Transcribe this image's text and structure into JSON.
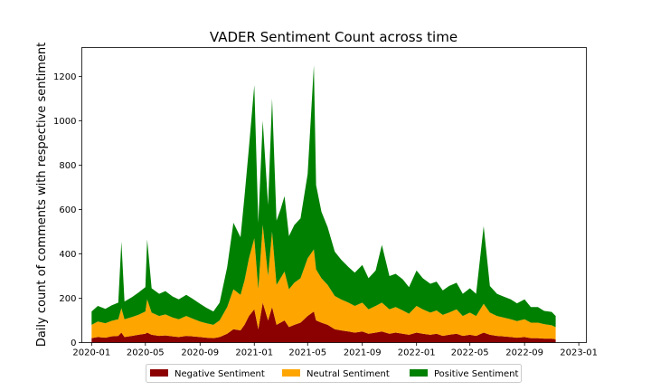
{
  "chart_data": {
    "type": "area",
    "stacked": true,
    "title": "VADER Sentiment Count across time",
    "xlabel": "",
    "ylabel": "Daily count of comments with respective sentiment",
    "xlim": [
      "2019-12-10",
      "2023-01-18"
    ],
    "ylim": [
      0,
      1330
    ],
    "x_ticks": [
      "2020-01",
      "2020-05",
      "2020-09",
      "2021-01",
      "2021-05",
      "2021-09",
      "2022-01",
      "2022-05",
      "2022-09",
      "2023-01"
    ],
    "y_ticks": [
      0,
      200,
      400,
      600,
      800,
      1000,
      1200
    ],
    "grid": false,
    "legend_position": "bottom-center",
    "colors": {
      "Negative Sentiment": "#8b0000",
      "Neutral Sentiment": "#ffa500",
      "Positive Sentiment": "#008000"
    },
    "dates": [
      "2020-01-01",
      "2020-01-15",
      "2020-02-01",
      "2020-02-15",
      "2020-03-01",
      "2020-03-08",
      "2020-03-15",
      "2020-04-01",
      "2020-04-15",
      "2020-05-01",
      "2020-05-05",
      "2020-05-15",
      "2020-06-01",
      "2020-06-15",
      "2020-07-01",
      "2020-07-15",
      "2020-08-01",
      "2020-08-15",
      "2020-09-01",
      "2020-09-15",
      "2020-10-01",
      "2020-10-15",
      "2020-11-01",
      "2020-11-15",
      "2020-12-01",
      "2020-12-10",
      "2020-12-20",
      "2021-01-01",
      "2021-01-10",
      "2021-01-20",
      "2021-02-01",
      "2021-02-10",
      "2021-02-20",
      "2021-03-01",
      "2021-03-10",
      "2021-03-20",
      "2021-04-01",
      "2021-04-15",
      "2021-05-01",
      "2021-05-15",
      "2021-05-20",
      "2021-06-01",
      "2021-06-15",
      "2021-07-01",
      "2021-07-15",
      "2021-08-01",
      "2021-08-15",
      "2021-09-01",
      "2021-09-15",
      "2021-10-01",
      "2021-10-15",
      "2021-11-01",
      "2021-11-15",
      "2021-12-01",
      "2021-12-15",
      "2022-01-01",
      "2022-01-15",
      "2022-02-01",
      "2022-02-15",
      "2022-03-01",
      "2022-03-15",
      "2022-04-01",
      "2022-04-15",
      "2022-05-01",
      "2022-05-15",
      "2022-06-01",
      "2022-06-15",
      "2022-07-01",
      "2022-07-15",
      "2022-08-01",
      "2022-08-15",
      "2022-09-01",
      "2022-09-15",
      "2022-10-01",
      "2022-10-15",
      "2022-11-01",
      "2022-11-10"
    ],
    "series": [
      {
        "name": "Negative Sentiment",
        "values": [
          20,
          25,
          22,
          28,
          30,
          45,
          25,
          30,
          35,
          40,
          45,
          35,
          30,
          32,
          28,
          25,
          30,
          28,
          25,
          22,
          20,
          25,
          40,
          60,
          55,
          80,
          120,
          150,
          60,
          180,
          100,
          160,
          80,
          90,
          100,
          70,
          80,
          90,
          120,
          140,
          100,
          90,
          80,
          60,
          55,
          50,
          45,
          50,
          40,
          45,
          50,
          40,
          45,
          40,
          35,
          45,
          40,
          35,
          40,
          30,
          35,
          40,
          30,
          35,
          30,
          45,
          35,
          30,
          28,
          25,
          22,
          25,
          20,
          20,
          18,
          18,
          15
        ]
      },
      {
        "name": "Neutral Sentiment",
        "values": [
          60,
          70,
          65,
          70,
          75,
          110,
          80,
          85,
          90,
          100,
          150,
          100,
          90,
          95,
          85,
          80,
          90,
          80,
          70,
          65,
          60,
          75,
          120,
          180,
          160,
          200,
          260,
          320,
          180,
          350,
          200,
          340,
          180,
          200,
          220,
          170,
          190,
          200,
          260,
          280,
          230,
          200,
          180,
          150,
          140,
          130,
          120,
          130,
          110,
          120,
          130,
          110,
          115,
          105,
          95,
          120,
          110,
          100,
          105,
          95,
          100,
          110,
          90,
          100,
          90,
          130,
          100,
          90,
          85,
          80,
          75,
          80,
          70,
          70,
          65,
          60,
          55
        ]
      },
      {
        "name": "Positive Sentiment",
        "values": [
          60,
          70,
          65,
          70,
          75,
          300,
          80,
          90,
          100,
          110,
          270,
          110,
          100,
          105,
          95,
          90,
          95,
          90,
          80,
          70,
          60,
          80,
          180,
          300,
          260,
          380,
          500,
          690,
          300,
          470,
          320,
          600,
          290,
          310,
          340,
          240,
          260,
          270,
          380,
          830,
          380,
          300,
          260,
          200,
          180,
          160,
          150,
          170,
          140,
          160,
          260,
          150,
          150,
          140,
          120,
          160,
          140,
          130,
          130,
          110,
          120,
          120,
          100,
          110,
          100,
          350,
          120,
          100,
          95,
          90,
          80,
          90,
          70,
          70,
          60,
          60,
          50
        ]
      }
    ]
  }
}
